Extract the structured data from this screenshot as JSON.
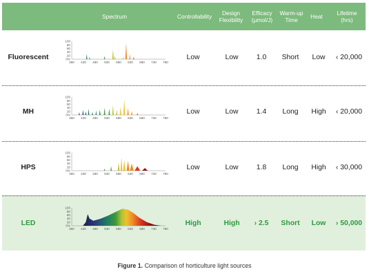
{
  "header": {
    "spectrum": "Spectrum",
    "controllability": "Controllability",
    "design_flexibility": [
      "Design",
      "Flexibility"
    ],
    "efficacy": [
      "Efficacy",
      "(µmol/J)"
    ],
    "warmup": [
      "Warm-up",
      "Time"
    ],
    "heat": "Heat",
    "lifetime": [
      "Lifetime",
      "(hrs)"
    ]
  },
  "axis": {
    "y_ticks": [
      "100",
      "80",
      "60",
      "40",
      "20",
      "0%"
    ],
    "x_ticks": [
      "360",
      "430",
      "480",
      "530",
      "580",
      "630",
      "680",
      "730",
      "780"
    ]
  },
  "rows": [
    {
      "name": "Fluorescent",
      "controllability": "Low",
      "design_flexibility": "Low",
      "efficacy": "1.0",
      "warmup": "Short",
      "heat": "Low",
      "lifetime": "‹ 20,000"
    },
    {
      "name": "MH",
      "controllability": "Low",
      "design_flexibility": "Low",
      "efficacy": "1.4",
      "warmup": "Long",
      "heat": "High",
      "lifetime": "‹ 20,000"
    },
    {
      "name": "HPS",
      "controllability": "Low",
      "design_flexibility": "Low",
      "efficacy": "1.8",
      "warmup": "Long",
      "heat": "High",
      "lifetime": "‹ 30,000"
    },
    {
      "name": "LED",
      "controllability": "High",
      "design_flexibility": "High",
      "efficacy": "› 2.5",
      "warmup": "Short",
      "heat": "Low",
      "lifetime": "› 50,000"
    }
  ],
  "caption": {
    "label": "Figure 1.",
    "text": "Comparison of horticulture light sources"
  }
}
